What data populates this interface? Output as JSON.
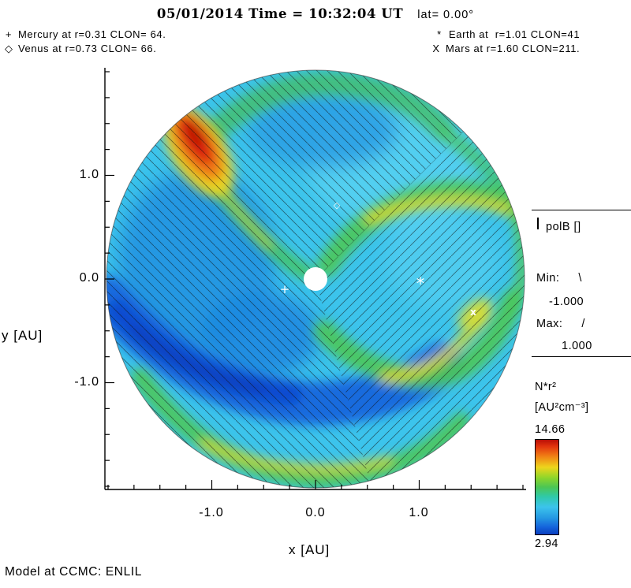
{
  "header": {
    "datetime": "05/01/2014 Time = 10:32:04 UT",
    "lat": "lat= 0.00°"
  },
  "annotations": {
    "mercury": {
      "symbol": "+",
      "text": "Mercury at r=0.31 CLON= 64."
    },
    "venus": {
      "symbol": "◇",
      "text": "Venus at r=0.73 CLON= 66."
    },
    "earth": {
      "symbol": "*",
      "text": "Earth at  r=1.01 CLON=41"
    },
    "mars": {
      "symbol": "X",
      "text": "Mars at r=1.60 CLON=211."
    }
  },
  "markers": {
    "mercury": "+",
    "venus": "◇",
    "earth": "*",
    "mars": "x"
  },
  "axes": {
    "x_label": "x [AU]",
    "y_label": "y [AU]",
    "x_tick_labels": [
      "-1.0",
      "0.0",
      "1.0"
    ],
    "y_tick_labels": [
      "1.0",
      "0.0",
      "-1.0"
    ]
  },
  "legend": {
    "title": "polB []",
    "min_label": "Min:",
    "min_symbol": "\\",
    "min_value": "-1.000",
    "max_label": "Max:",
    "max_symbol": "/",
    "max_value": "1.000"
  },
  "colorbar": {
    "quantity": "N*r²",
    "units": "[AU²cm⁻³]",
    "max": "14.66",
    "min": "2.94"
  },
  "footer": {
    "model": "Model at CCMC: ENLIL"
  },
  "chart_data": {
    "type": "heatmap",
    "subtype": "polar ecliptic-plane cut, circular domain r ≤ 2 AU",
    "title": "05/01/2014 Time = 10:32:04 UT lat= 0.00°",
    "xlabel": "x [AU]",
    "ylabel": "y [AU]",
    "xlim": [
      -2,
      2
    ],
    "ylim": [
      -2,
      2
    ],
    "x_ticks": [
      -1.0,
      0.0,
      1.0
    ],
    "y_ticks": [
      -1.0,
      0.0,
      1.0
    ],
    "quantity": "N*r²",
    "units": "AU²cm⁻³",
    "scale_min": 2.94,
    "scale_max": 14.66,
    "palette": [
      "#0A3EBE",
      "#1565DC",
      "#2496E2",
      "#3CC4EC",
      "#2FC9A8",
      "#4CC654",
      "#8FD62A",
      "#EED51C",
      "#F07D14",
      "#DD2410",
      "#B80E06"
    ],
    "overlay_field": {
      "name": "polB",
      "min": -1.0,
      "max": 1.0,
      "min_hatch": "\\",
      "max_hatch": "/"
    },
    "planets": [
      {
        "name": "Mercury",
        "symbol": "+",
        "r_au": 0.31,
        "clon_deg": 64
      },
      {
        "name": "Venus",
        "symbol": "◇",
        "r_au": 0.73,
        "clon_deg": 66
      },
      {
        "name": "Earth",
        "symbol": "*",
        "r_au": 1.01,
        "clon_deg": 41
      },
      {
        "name": "Mars",
        "symbol": "X",
        "r_au": 1.6,
        "clon_deg": 211
      }
    ],
    "model": "ENLIL",
    "source_text": "Model at CCMC: ENLIL",
    "features": [
      "high-density red/orange compression region at upper-left, r ≈ 1.2-1.9 AU",
      "two yellow-green spiral density arms winding from inner boundary out to the rim (upper-right and lower-right)",
      "yellow-green high-density band along the bottom outer rim",
      "dark-blue low-density rarefaction channel spiraling through the left and lower-left quadrant",
      "white inner-boundary disk at the origin (Sun)",
      "black diagonal hatching over the disk indicating magnetic polarity sectors"
    ]
  }
}
